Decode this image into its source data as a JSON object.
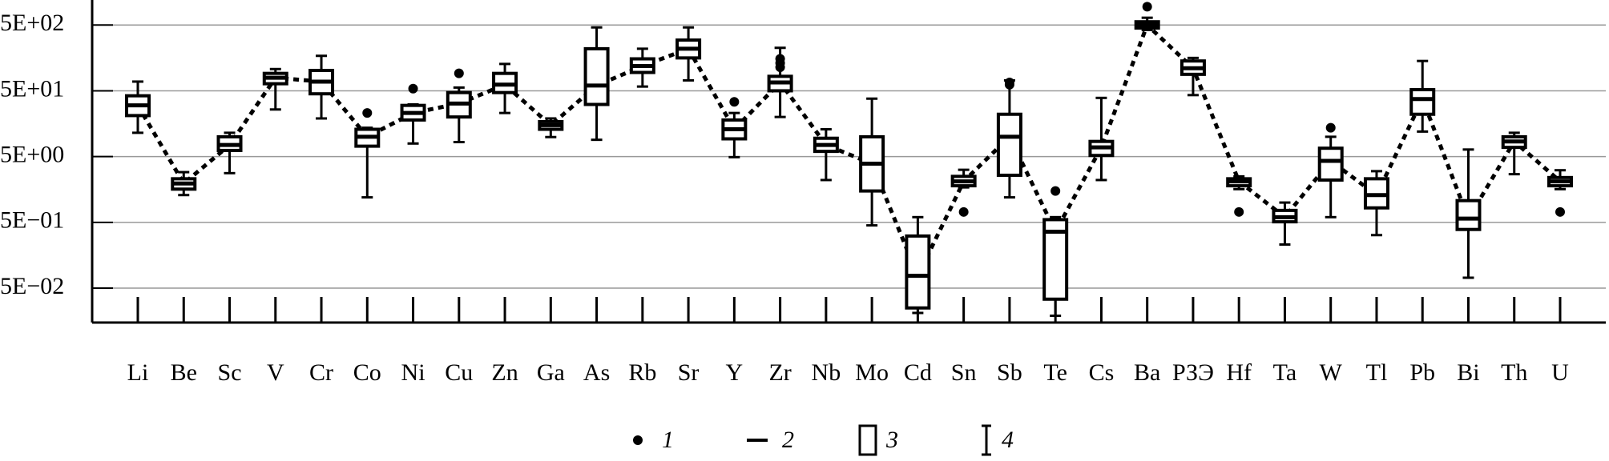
{
  "chart_data": {
    "type": "box",
    "log_scale": true,
    "grid": true,
    "categories": [
      "Li",
      "Be",
      "Sc",
      "V",
      "Cr",
      "Co",
      "Ni",
      "Cu",
      "Zn",
      "Ga",
      "As",
      "Rb",
      "Sr",
      "Y",
      "Zr",
      "Nb",
      "Mo",
      "Cd",
      "Sn",
      "Sb",
      "Te",
      "Cs",
      "Ba",
      "РЗЭ",
      "Hf",
      "Ta",
      "W",
      "Tl",
      "Pb",
      "Bi",
      "Th",
      "U"
    ],
    "low": [
      11.5,
      1.3,
      2.8,
      26,
      19,
      1.2,
      7.9,
      8.3,
      23,
      9.9,
      9,
      58,
      72,
      4.9,
      20,
      2.2,
      0.45,
      0.021,
      1.7,
      1.2,
      0.019,
      2.2,
      420,
      43,
      1.6,
      0.23,
      0.6,
      0.32,
      12,
      0.072,
      2.7,
      1.6
    ],
    "q1": [
      21,
      1.6,
      6.2,
      64,
      45,
      7.2,
      18,
      20,
      47,
      13,
      31,
      95,
      158,
      9.3,
      50,
      6,
      1.5,
      0.025,
      1.8,
      2.6,
      0.034,
      5.2,
      450,
      89,
      1.8,
      0.51,
      2.2,
      0.83,
      22,
      0.39,
      6.9,
      1.8
    ],
    "median": [
      30,
      1.95,
      7.5,
      79,
      69,
      10,
      23,
      32,
      62,
      15,
      60,
      119,
      218,
      13,
      67,
      7.5,
      3.9,
      0.077,
      2.1,
      10,
      0.36,
      6.9,
      500,
      110,
      2.1,
      0.6,
      4.3,
      1.3,
      37.5,
      0.57,
      8.5,
      2.1
    ],
    "q3": [
      42,
      2.3,
      10,
      92,
      102,
      13,
      30,
      47,
      92,
      17,
      218,
      153,
      295,
      18,
      83,
      9.5,
      10,
      0.31,
      2.5,
      22,
      0.55,
      8.5,
      560,
      142,
      2.3,
      0.76,
      6.7,
      2.3,
      52,
      1.07,
      10,
      2.4
    ],
    "high": [
      69,
      2.9,
      11.5,
      107,
      170,
      13.7,
      31,
      56,
      128,
      19,
      460,
      218,
      460,
      23,
      225,
      13,
      38,
      0.6,
      3.15,
      72,
      0.6,
      39,
      645,
      158,
      2.5,
      1.0,
      10,
      3.0,
      142,
      6.4,
      11.5,
      3.1
    ],
    "outliers": [
      [],
      [],
      [],
      [],
      [],
      [
        23
      ],
      [
        54
      ],
      [
        92
      ],
      [],
      [],
      [],
      [],
      [],
      [
        34
      ],
      [
        153,
        132,
        114
      ],
      [],
      [],
      [],
      [
        0.72
      ],
      [
        67,
        62
      ],
      [
        1.5
      ],
      [],
      [
        950
      ],
      [],
      [
        0.72
      ],
      [],
      [
        13.7
      ],
      [],
      [],
      [],
      [],
      [
        0.72
      ]
    ],
    "ylim": [
      0.015,
      1200
    ],
    "yticks": [
      {
        "value": 0.05,
        "label": "5E−02"
      },
      {
        "value": 0.5,
        "label": "5E−01"
      },
      {
        "value": 5,
        "label": "5E+00"
      },
      {
        "value": 50,
        "label": "5E+01"
      },
      {
        "value": 500,
        "label": "5E+02"
      }
    ],
    "legend": [
      "1",
      "2",
      "3",
      "4"
    ]
  }
}
